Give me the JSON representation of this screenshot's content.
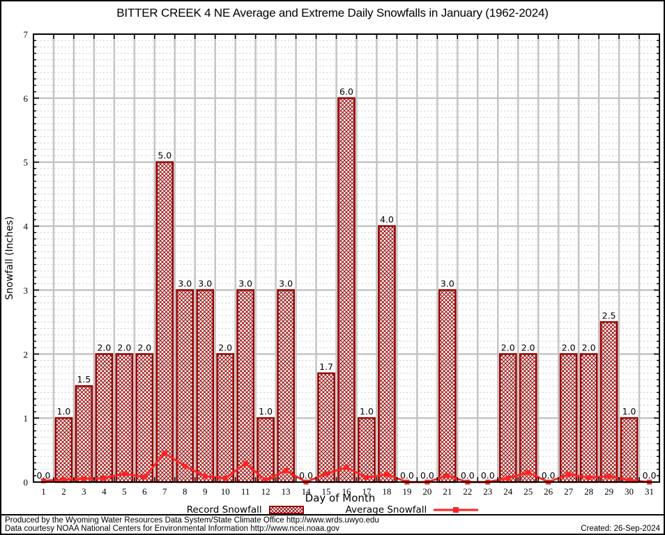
{
  "chart_data": {
    "type": "bar",
    "title": "BITTER CREEK 4 NE Average and Extreme Daily Snowfalls in January (1962-2024)",
    "xlabel": "Day of Month",
    "ylabel": "Snowfall (Inches)",
    "ylim": [
      0,
      7
    ],
    "y_major_step": 1,
    "y_minor_step": 0.1,
    "grid": true,
    "legend_position": "bottom",
    "categories": [
      1,
      2,
      3,
      4,
      5,
      6,
      7,
      8,
      9,
      10,
      11,
      12,
      13,
      14,
      15,
      16,
      17,
      18,
      19,
      20,
      21,
      22,
      23,
      24,
      25,
      26,
      27,
      28,
      29,
      30,
      31
    ],
    "series": [
      {
        "name": "Record Snowfall",
        "type": "bar",
        "values": [
          0.0,
          1.0,
          1.5,
          2.0,
          2.0,
          2.0,
          5.0,
          3.0,
          3.0,
          2.0,
          3.0,
          1.0,
          3.0,
          0.0,
          1.7,
          6.0,
          1.0,
          4.0,
          0.0,
          0.0,
          3.0,
          0.0,
          0.0,
          2.0,
          2.0,
          0.0,
          2.0,
          2.0,
          2.5,
          1.0,
          0.0
        ]
      },
      {
        "name": "Average Snowfall",
        "type": "line",
        "values": [
          0.02,
          0.04,
          0.05,
          0.06,
          0.13,
          0.08,
          0.45,
          0.25,
          0.09,
          0.06,
          0.29,
          0.03,
          0.18,
          0.0,
          0.13,
          0.23,
          0.07,
          0.12,
          0.0,
          0.0,
          0.1,
          0.0,
          0.0,
          0.06,
          0.15,
          0.0,
          0.12,
          0.07,
          0.09,
          0.03,
          0.0
        ]
      }
    ],
    "bar_value_labels_shown": true,
    "colors": {
      "bar": "#990000",
      "line": "#ff2222",
      "grid_major": "#c4c4c4",
      "grid_minor": "#cccccc",
      "axis": "#000000"
    }
  },
  "footer": {
    "line1": "Produced by the Wyoming Water Resources Data System/State Climate Office http://www.wrds.uwyo.edu",
    "line2": "Data courtesy NOAA National Centers for Environmental Information http://www.ncei.noaa.gov",
    "created": "Created: 26-Sep-2024"
  }
}
